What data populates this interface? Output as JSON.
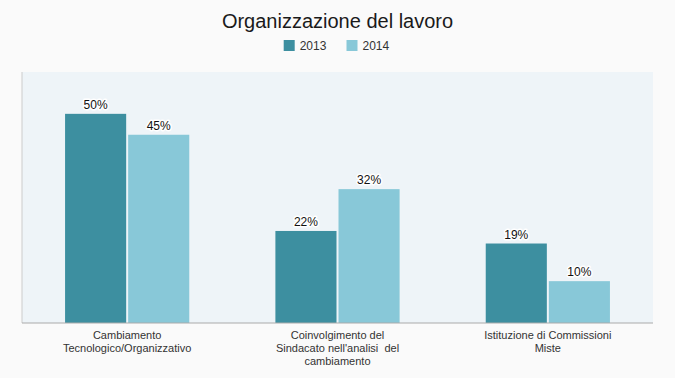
{
  "chart_data": {
    "type": "bar",
    "title": "Organizzazione del lavoro",
    "categories": [
      "Cambiamento\nTecnologico/Organizzativo",
      "Coinvolgimento del\nSindacato nell'analisi  del\ncambiamento",
      "Istituzione di Commissioni\nMiste"
    ],
    "series": [
      {
        "name": "2013",
        "color": "#3D8FA0",
        "values": [
          50,
          22,
          19
        ],
        "value_labels": [
          "50%",
          "22%",
          "19%"
        ]
      },
      {
        "name": "2014",
        "color": "#88C8D8",
        "values": [
          45,
          32,
          10
        ],
        "value_labels": [
          "45%",
          "32%",
          "10%"
        ]
      }
    ],
    "ylim": [
      0,
      60
    ],
    "grid": false,
    "legend": "top",
    "data_labels": true,
    "tick_labels": "x"
  }
}
